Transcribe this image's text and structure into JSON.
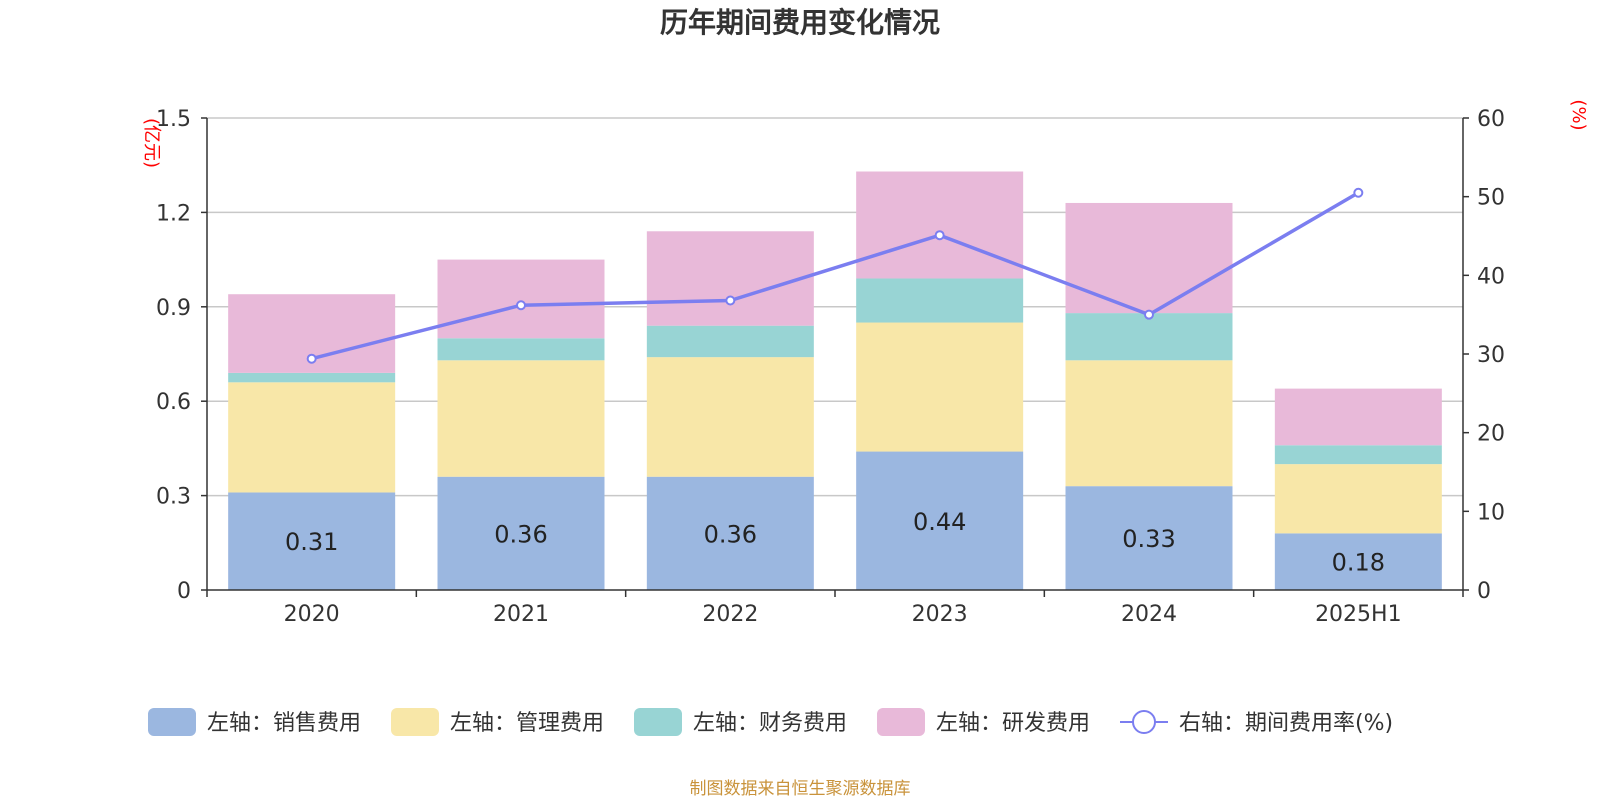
{
  "chart_data": {
    "type": "bar",
    "title": "历年期间费用变化情况",
    "categories": [
      "2020",
      "2021",
      "2022",
      "2023",
      "2024",
      "2025H1"
    ],
    "y_left": {
      "unit": "(亿元)",
      "ylim": [
        0,
        1.5
      ],
      "ticks": [
        "0",
        "0.3",
        "0.6",
        "0.9",
        "1.2",
        "1.5"
      ]
    },
    "y_right": {
      "unit": "(%)",
      "ylim": [
        0,
        60
      ],
      "ticks": [
        "0",
        "10",
        "20",
        "30",
        "40",
        "50",
        "60"
      ]
    },
    "series": [
      {
        "name": "左轴：销售费用",
        "kind": "bar",
        "axis": "left",
        "color": "#9bb7e0",
        "values": [
          0.31,
          0.36,
          0.36,
          0.44,
          0.33,
          0.18
        ],
        "labels": [
          "0.31",
          "0.36",
          "0.36",
          "0.44",
          "0.33",
          "0.18"
        ]
      },
      {
        "name": "左轴：管理费用",
        "kind": "bar",
        "axis": "left",
        "color": "#f8e7a8",
        "values": [
          0.35,
          0.37,
          0.38,
          0.41,
          0.4,
          0.22
        ]
      },
      {
        "name": "左轴：财务费用",
        "kind": "bar",
        "axis": "left",
        "color": "#98d4d4",
        "values": [
          0.03,
          0.07,
          0.1,
          0.14,
          0.15,
          0.06
        ]
      },
      {
        "name": "左轴：研发费用",
        "kind": "bar",
        "axis": "left",
        "color": "#e8b9d9",
        "values": [
          0.25,
          0.25,
          0.3,
          0.34,
          0.35,
          0.18
        ]
      },
      {
        "name": "右轴：期间费用率(%)",
        "kind": "line",
        "axis": "right",
        "color": "#7b7ef0",
        "values": [
          29.4,
          36.2,
          36.8,
          45.1,
          35.0,
          50.5
        ]
      }
    ],
    "grid": true,
    "legend_position": "bottom"
  },
  "source_note": "制图数据来自恒生聚源数据库"
}
